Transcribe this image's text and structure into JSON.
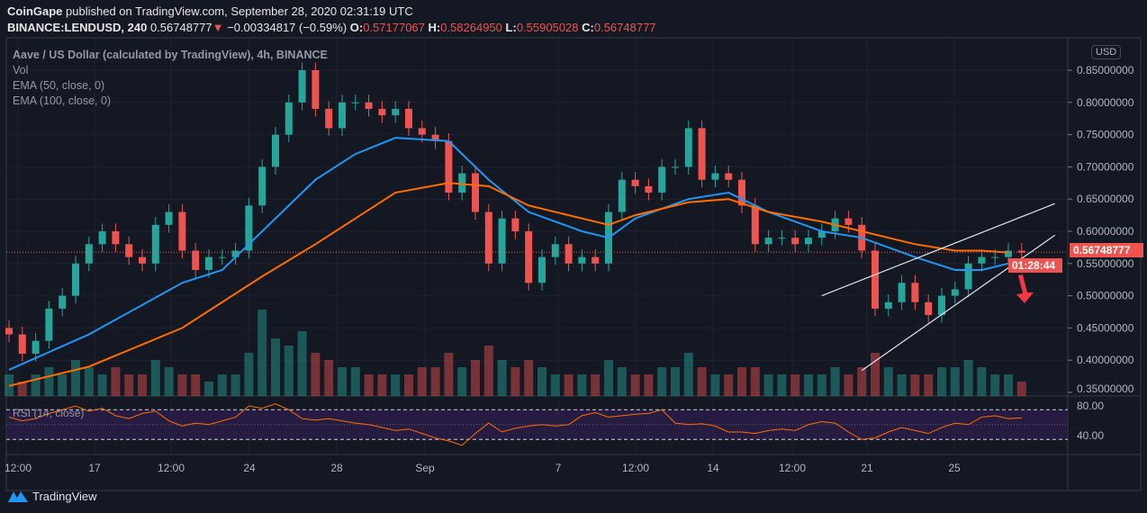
{
  "header": {
    "publisher": "CoinGape",
    "published_text": "published on TradingView.com, September 28, 2020 02:31:19 UTC",
    "symbol": "BINANCE:LENDUSD, 240",
    "last": "0.56748777",
    "change": "−0.00334817 (−0.59%)",
    "o_label": "O:",
    "o": "0.57177067",
    "h_label": "H:",
    "h": "0.58264950",
    "l_label": "L:",
    "l": "0.55905028",
    "c_label": "C:",
    "c": "0.56748777"
  },
  "legend": {
    "title": "Aave / US Dollar (calculated by TradingView), 4h, BINANCE",
    "vol": "Vol",
    "ema50": "EMA (50, close, 0)",
    "ema100": "EMA (100, close, 0)",
    "rsi": "RSI (14, close)"
  },
  "currency_button": "USD",
  "price_tag": "0.56748777",
  "countdown": "01:28:44",
  "footer": {
    "brand": "TradingView"
  },
  "colors": {
    "up": "#26a69a",
    "down": "#ef5350",
    "ema50": "#2196f3",
    "ema100": "#ff6d00",
    "rsi": "#ff6d00",
    "bg": "#141823"
  },
  "chart_data": {
    "type": "line",
    "title": "Aave / US Dollar (calculated by TradingView), 4h, BINANCE",
    "ylabel": "USD",
    "ylim": [
      0.35,
      0.85
    ],
    "yticks": [
      "0.85000000",
      "0.80000000",
      "0.75000000",
      "0.70000000",
      "0.65000000",
      "0.60000000",
      "0.55000000",
      "0.50000000",
      "0.45000000",
      "0.40000000",
      "0.35000000"
    ],
    "xtick_labels": [
      "12:00",
      "17",
      "12:00",
      "24",
      "28",
      "Sep",
      "7",
      "12:00",
      "14",
      "12:00",
      "21",
      "25"
    ],
    "grid": true,
    "close": [
      0.44,
      0.41,
      0.43,
      0.48,
      0.5,
      0.55,
      0.58,
      0.6,
      0.58,
      0.56,
      0.55,
      0.61,
      0.63,
      0.57,
      0.54,
      0.56,
      0.56,
      0.57,
      0.64,
      0.7,
      0.75,
      0.8,
      0.85,
      0.79,
      0.76,
      0.8,
      0.8,
      0.79,
      0.78,
      0.79,
      0.76,
      0.75,
      0.74,
      0.66,
      0.69,
      0.63,
      0.55,
      0.62,
      0.6,
      0.52,
      0.56,
      0.58,
      0.55,
      0.56,
      0.55,
      0.63,
      0.68,
      0.67,
      0.66,
      0.7,
      0.7,
      0.76,
      0.68,
      0.69,
      0.68,
      0.64,
      0.58,
      0.59,
      0.59,
      0.58,
      0.59,
      0.6,
      0.62,
      0.61,
      0.57,
      0.48,
      0.49,
      0.52,
      0.49,
      0.47,
      0.5,
      0.51,
      0.55,
      0.56,
      0.56,
      0.57,
      0.567
    ],
    "volume": [
      3,
      2,
      3,
      4,
      3,
      5,
      4,
      3,
      4,
      3,
      3,
      5,
      4,
      3,
      3,
      2,
      3,
      3,
      6,
      12,
      8,
      7,
      9,
      6,
      5,
      4,
      4,
      3,
      3,
      3,
      3,
      4,
      4,
      6,
      4,
      5,
      7,
      5,
      4,
      5,
      4,
      3,
      3,
      3,
      3,
      5,
      4,
      3,
      3,
      4,
      4,
      6,
      4,
      3,
      3,
      4,
      4,
      3,
      3,
      3,
      3,
      3,
      4,
      3,
      4,
      6,
      4,
      3,
      3,
      3,
      4,
      4,
      5,
      4,
      3,
      3,
      2
    ],
    "series": [
      {
        "name": "EMA (50, close, 0)",
        "points": [
          [
            0,
            0.385
          ],
          [
            6,
            0.44
          ],
          [
            13,
            0.52
          ],
          [
            16,
            0.54
          ],
          [
            19,
            0.6
          ],
          [
            23,
            0.68
          ],
          [
            26,
            0.72
          ],
          [
            29,
            0.745
          ],
          [
            33,
            0.74
          ],
          [
            36,
            0.68
          ],
          [
            39,
            0.63
          ],
          [
            43,
            0.6
          ],
          [
            45,
            0.59
          ],
          [
            47,
            0.62
          ],
          [
            51,
            0.65
          ],
          [
            54,
            0.66
          ],
          [
            57,
            0.63
          ],
          [
            61,
            0.6
          ],
          [
            64,
            0.59
          ],
          [
            68,
            0.56
          ],
          [
            71,
            0.54
          ],
          [
            73,
            0.54
          ],
          [
            75,
            0.55
          ]
        ]
      },
      {
        "name": "EMA (100, close, 0)",
        "points": [
          [
            0,
            0.36
          ],
          [
            6,
            0.39
          ],
          [
            13,
            0.45
          ],
          [
            16,
            0.49
          ],
          [
            19,
            0.53
          ],
          [
            23,
            0.58
          ],
          [
            26,
            0.62
          ],
          [
            29,
            0.66
          ],
          [
            33,
            0.675
          ],
          [
            36,
            0.67
          ],
          [
            39,
            0.64
          ],
          [
            43,
            0.62
          ],
          [
            45,
            0.61
          ],
          [
            47,
            0.625
          ],
          [
            51,
            0.645
          ],
          [
            54,
            0.65
          ],
          [
            57,
            0.63
          ],
          [
            61,
            0.615
          ],
          [
            64,
            0.6
          ],
          [
            68,
            0.58
          ],
          [
            71,
            0.57
          ],
          [
            73,
            0.57
          ],
          [
            75,
            0.567
          ]
        ]
      }
    ],
    "rsi": {
      "name": "RSI (14, close)",
      "ylim": [
        20,
        90
      ],
      "bands": [
        70,
        30
      ],
      "ticks": [
        "80.00",
        "40.00"
      ],
      "values": [
        60,
        55,
        58,
        65,
        70,
        75,
        68,
        72,
        62,
        58,
        65,
        68,
        55,
        48,
        52,
        50,
        55,
        60,
        75,
        72,
        78,
        70,
        58,
        56,
        58,
        55,
        52,
        50,
        46,
        42,
        44,
        38,
        32,
        28,
        22,
        38,
        52,
        40,
        45,
        48,
        50,
        48,
        50,
        62,
        66,
        60,
        62,
        64,
        65,
        70,
        52,
        50,
        51,
        48,
        40,
        40,
        38,
        42,
        44,
        42,
        50,
        54,
        52,
        40,
        30,
        32,
        40,
        46,
        42,
        38,
        46,
        52,
        50,
        60,
        62,
        58,
        59
      ]
    },
    "annotations": {
      "wedge_upper": [
        [
          61,
          0.5
        ],
        [
          78.5,
          0.643
        ]
      ],
      "wedge_lower": [
        [
          64,
          0.384
        ],
        [
          78.5,
          0.594
        ]
      ],
      "arrow": "down"
    }
  }
}
